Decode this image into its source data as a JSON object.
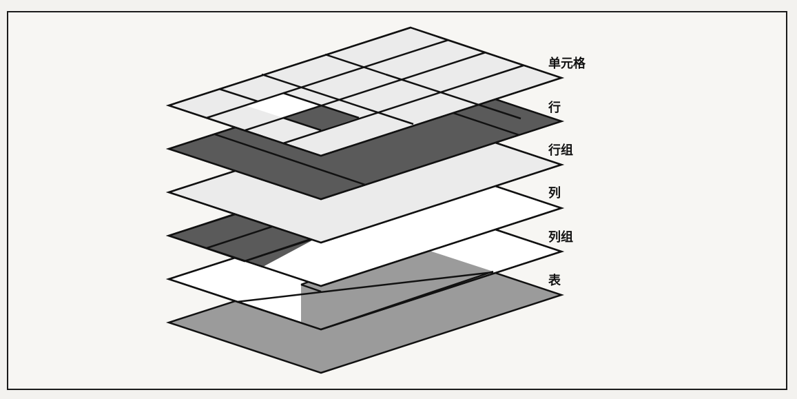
{
  "layers": [
    {
      "key": "cell",
      "label": "单元格"
    },
    {
      "key": "row",
      "label": "行"
    },
    {
      "key": "row_group",
      "label": "行组"
    },
    {
      "key": "column",
      "label": "列"
    },
    {
      "key": "column_group",
      "label": "列组"
    },
    {
      "key": "table",
      "label": "表"
    }
  ],
  "colors": {
    "light": "#ebebeb",
    "dark": "#5a5a5a",
    "medium": "#9b9b9b",
    "white": "#ffffff",
    "line": "#111111"
  }
}
